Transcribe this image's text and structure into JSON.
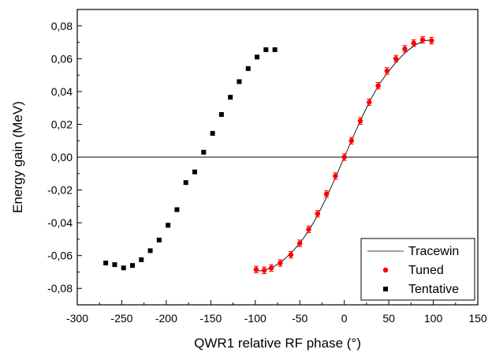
{
  "chart_data": {
    "type": "scatter",
    "title": "",
    "xlabel": "QWR1 relative RF phase (°)",
    "ylabel": "Energy gain (MeV)",
    "xlim": [
      -300,
      150
    ],
    "ylim": [
      -0.09,
      0.09
    ],
    "x_ticks": [
      -300,
      -250,
      -200,
      -150,
      -100,
      -50,
      0,
      50,
      100,
      150
    ],
    "x_tick_labels": [
      "-300",
      "-250",
      "-200",
      "-150",
      "-100",
      "-50",
      "0",
      "50",
      "100",
      "150"
    ],
    "y_ticks": [
      -0.08,
      -0.06,
      -0.04,
      -0.02,
      0.0,
      0.02,
      0.04,
      0.06,
      0.08
    ],
    "y_tick_labels": [
      "-0,08",
      "-0,06",
      "-0,04",
      "-0,02",
      "0,00",
      "0,02",
      "0,04",
      "0,06",
      "0,08"
    ],
    "grid": false,
    "legend_position": "bottom-right",
    "zero_line": 0,
    "series": [
      {
        "name": "Tracewin",
        "kind": "line",
        "color": "#000000",
        "x": [
          -100,
          -90,
          -80,
          -70,
          -60,
          -50,
          -40,
          -30,
          -20,
          -10,
          0,
          10,
          20,
          30,
          40,
          50,
          60,
          70,
          80,
          90,
          100
        ],
        "y": [
          -0.0695,
          -0.069,
          -0.067,
          -0.0635,
          -0.0585,
          -0.0525,
          -0.045,
          -0.0355,
          -0.0245,
          -0.0125,
          0.0,
          0.0125,
          0.0245,
          0.0355,
          0.045,
          0.0525,
          0.059,
          0.0645,
          0.0685,
          0.071,
          0.0715
        ]
      },
      {
        "name": "Tuned",
        "kind": "points",
        "marker": "circle",
        "color": "#ff0000",
        "error": 0.002,
        "x": [
          -99,
          -90,
          -82,
          -72,
          -60,
          -50,
          -40,
          -30,
          -20,
          -10,
          0,
          8,
          18,
          28,
          38,
          48,
          58,
          68,
          78,
          88,
          98
        ],
        "y": [
          -0.0685,
          -0.069,
          -0.0675,
          -0.0645,
          -0.0595,
          -0.0525,
          -0.044,
          -0.0345,
          -0.0225,
          -0.0115,
          0.0,
          0.01,
          0.022,
          0.0335,
          0.0435,
          0.0525,
          0.06,
          0.066,
          0.0695,
          0.0715,
          0.071
        ]
      },
      {
        "name": "Tentative",
        "kind": "points",
        "marker": "square",
        "color": "#000000",
        "x": [
          -268,
          -258,
          -248,
          -238,
          -228,
          -218,
          -208,
          -198,
          -188,
          -178,
          -168,
          -158,
          -148,
          -138,
          -128,
          -118,
          -108,
          -98,
          -88,
          -78
        ],
        "y": [
          -0.0645,
          -0.0655,
          -0.0675,
          -0.066,
          -0.0625,
          -0.057,
          -0.0505,
          -0.0415,
          -0.032,
          -0.0155,
          -0.009,
          0.003,
          0.0145,
          0.026,
          0.0365,
          0.046,
          0.054,
          0.061,
          0.0655,
          0.0655
        ]
      }
    ]
  }
}
